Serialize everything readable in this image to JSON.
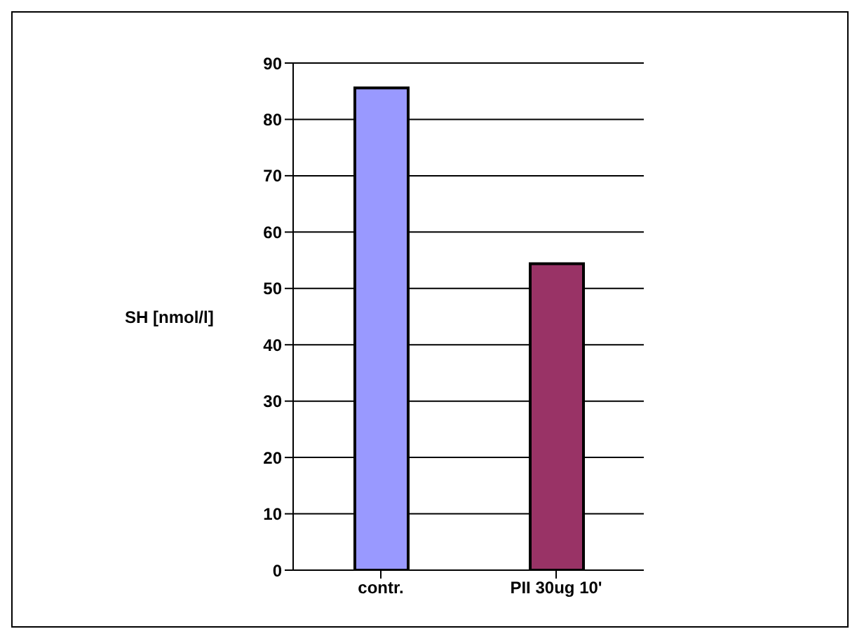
{
  "chart_data": {
    "type": "bar",
    "ylabel": "SH [nmol/l]",
    "categories": [
      "contr.",
      "PII 30ug 10'"
    ],
    "values": [
      85.6,
      54.4
    ],
    "colors": [
      "#9999ff",
      "#993366"
    ],
    "ylim": [
      0,
      90
    ],
    "yticks": [
      0,
      10,
      20,
      30,
      40,
      50,
      60,
      70,
      80,
      90
    ],
    "grid": "y"
  }
}
